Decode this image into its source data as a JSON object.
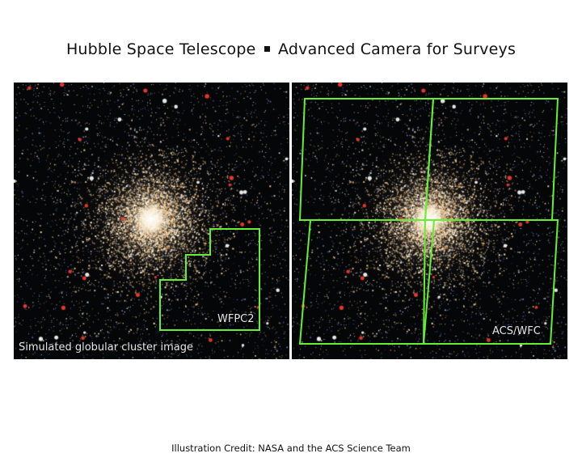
{
  "title": {
    "left": "Hubble Space Telescope",
    "right": "Advanced Camera for Surveys"
  },
  "panels": {
    "left": {
      "caption": "Simulated globular cluster image",
      "footprint_label": "WFPC2"
    },
    "right": {
      "footprint_label": "ACS/WFC"
    }
  },
  "credit": "Illustration Credit: NASA and the ACS Science Team",
  "colors": {
    "footprint_outline": "#66ee33",
    "background": "#050608"
  }
}
